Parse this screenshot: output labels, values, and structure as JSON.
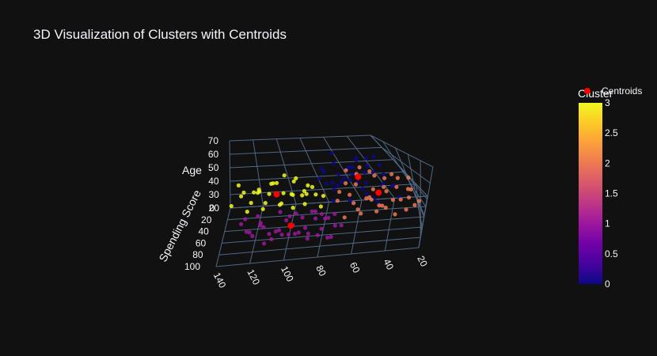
{
  "chart_data": {
    "type": "scatter",
    "title": "3D Visualization of Clusters with Centroids",
    "axes": {
      "x": {
        "title": "",
        "ticks": [
          140,
          120,
          100,
          80,
          60,
          40,
          20
        ]
      },
      "y": {
        "title": "Spending Score",
        "ticks": [
          0,
          20,
          40,
          60,
          80,
          100
        ]
      },
      "z": {
        "title": "Age",
        "ticks": [
          20,
          30,
          40,
          50,
          60,
          70
        ]
      }
    },
    "colorbar": {
      "title": "Cluster",
      "ticks": [
        "3",
        "2.5",
        "2",
        "1.5",
        "1",
        "0.5",
        "0"
      ],
      "range": [
        0,
        3
      ],
      "colors": [
        "#0d0887",
        "#46039f",
        "#7201a8",
        "#9c179e",
        "#bd3786",
        "#d8576b",
        "#ed7953",
        "#fb9f3a",
        "#fdca26",
        "#f0f921"
      ]
    },
    "legend": [
      {
        "name": "Centroids",
        "color": "#ff0000"
      }
    ],
    "series": [
      {
        "cluster": 0,
        "color": "#0d0887",
        "points": [
          [
            78,
            28,
            49
          ],
          [
            74,
            32,
            55
          ],
          [
            70,
            38,
            44
          ],
          [
            66,
            34,
            61
          ],
          [
            62,
            40,
            52
          ],
          [
            58,
            30,
            47
          ],
          [
            54,
            36,
            58
          ],
          [
            50,
            42,
            40
          ],
          [
            46,
            28,
            51
          ],
          [
            42,
            34,
            63
          ],
          [
            38,
            40,
            45
          ],
          [
            34,
            30,
            56
          ],
          [
            30,
            36,
            42
          ],
          [
            72,
            44,
            38
          ],
          [
            68,
            48,
            50
          ],
          [
            64,
            26,
            66
          ],
          [
            60,
            46,
            36
          ],
          [
            56,
            22,
            53
          ],
          [
            52,
            48,
            46
          ],
          [
            48,
            24,
            59
          ],
          [
            44,
            44,
            34
          ],
          [
            40,
            20,
            48
          ],
          [
            36,
            46,
            54
          ],
          [
            32,
            26,
            39
          ],
          [
            76,
            40,
            60
          ],
          [
            70,
            22,
            43
          ],
          [
            66,
            46,
            57
          ],
          [
            62,
            32,
            33
          ],
          [
            58,
            48,
            62
          ],
          [
            54,
            20,
            41
          ],
          [
            50,
            38,
            65
          ],
          [
            46,
            44,
            37
          ],
          [
            42,
            24,
            54
          ],
          [
            38,
            48,
            48
          ],
          [
            34,
            22,
            60
          ],
          [
            30,
            42,
            36
          ],
          [
            74,
            26,
            44
          ],
          [
            64,
            36,
            48
          ],
          [
            56,
            42,
            55
          ],
          [
            48,
            30,
            44
          ]
        ]
      },
      {
        "cluster": 1,
        "color": "#9c179e",
        "points": [
          [
            130,
            58,
            32
          ],
          [
            124,
            62,
            27
          ],
          [
            118,
            66,
            35
          ],
          [
            112,
            60,
            24
          ],
          [
            106,
            70,
            30
          ],
          [
            100,
            64,
            37
          ],
          [
            96,
            74,
            28
          ],
          [
            92,
            58,
            33
          ],
          [
            88,
            68,
            25
          ],
          [
            84,
            62,
            38
          ],
          [
            80,
            72,
            29
          ],
          [
            76,
            66,
            34
          ],
          [
            72,
            60,
            26
          ],
          [
            126,
            70,
            31
          ],
          [
            120,
            56,
            36
          ],
          [
            114,
            74,
            23
          ],
          [
            108,
            64,
            27
          ],
          [
            102,
            58,
            32
          ],
          [
            98,
            76,
            35
          ],
          [
            94,
            62,
            24
          ],
          [
            90,
            70,
            30
          ],
          [
            86,
            56,
            36
          ],
          [
            82,
            78,
            27
          ],
          [
            78,
            64,
            33
          ],
          [
            74,
            70,
            22
          ],
          [
            110,
            80,
            28
          ],
          [
            104,
            66,
            25
          ],
          [
            128,
            64,
            38
          ],
          [
            122,
            76,
            30
          ],
          [
            116,
            52,
            26
          ],
          [
            100,
            82,
            31
          ],
          [
            96,
            52,
            34
          ],
          [
            88,
            80,
            26
          ],
          [
            84,
            54,
            30
          ],
          [
            80,
            60,
            35
          ],
          [
            76,
            76,
            24
          ],
          [
            72,
            54,
            32
          ],
          [
            68,
            66,
            28
          ],
          [
            118,
            58,
            30
          ],
          [
            106,
            52,
            36
          ]
        ]
      },
      {
        "cluster": 2,
        "color": "#ed7953",
        "points": [
          [
            68,
            56,
            48
          ],
          [
            64,
            60,
            55
          ],
          [
            60,
            64,
            42
          ],
          [
            56,
            58,
            60
          ],
          [
            52,
            66,
            45
          ],
          [
            48,
            70,
            52
          ],
          [
            44,
            62,
            38
          ],
          [
            40,
            68,
            58
          ],
          [
            36,
            72,
            44
          ],
          [
            32,
            64,
            50
          ],
          [
            28,
            70,
            36
          ],
          [
            24,
            66,
            56
          ],
          [
            20,
            74,
            42
          ],
          [
            66,
            68,
            34
          ],
          [
            62,
            54,
            62
          ],
          [
            58,
            72,
            40
          ],
          [
            54,
            60,
            65
          ],
          [
            50,
            76,
            47
          ],
          [
            46,
            56,
            32
          ],
          [
            42,
            74,
            54
          ],
          [
            38,
            58,
            46
          ],
          [
            34,
            78,
            60
          ],
          [
            30,
            60,
            40
          ],
          [
            26,
            80,
            52
          ],
          [
            22,
            62,
            36
          ],
          [
            60,
            74,
            58
          ],
          [
            52,
            80,
            50
          ],
          [
            44,
            82,
            44
          ],
          [
            36,
            84,
            38
          ],
          [
            28,
            84,
            48
          ],
          [
            56,
            52,
            30
          ],
          [
            48,
            62,
            62
          ],
          [
            40,
            56,
            34
          ],
          [
            32,
            54,
            56
          ],
          [
            24,
            58,
            46
          ],
          [
            70,
            62,
            44
          ],
          [
            64,
            76,
            52
          ],
          [
            46,
            66,
            60
          ]
        ]
      },
      {
        "cluster": 3,
        "color": "#f0f921",
        "points": [
          [
            138,
            20,
            30
          ],
          [
            132,
            16,
            35
          ],
          [
            126,
            12,
            28
          ],
          [
            120,
            18,
            40
          ],
          [
            114,
            10,
            33
          ],
          [
            108,
            14,
            26
          ],
          [
            104,
            20,
            37
          ],
          [
            100,
            8,
            31
          ],
          [
            96,
            12,
            42
          ],
          [
            92,
            18,
            27
          ],
          [
            88,
            6,
            36
          ],
          [
            84,
            14,
            32
          ],
          [
            80,
            10,
            29
          ],
          [
            130,
            24,
            41
          ],
          [
            124,
            8,
            34
          ],
          [
            118,
            22,
            27
          ],
          [
            112,
            4,
            38
          ],
          [
            106,
            24,
            31
          ],
          [
            102,
            2,
            43
          ],
          [
            98,
            22,
            36
          ],
          [
            94,
            4,
            28
          ],
          [
            90,
            24,
            39
          ],
          [
            86,
            2,
            33
          ],
          [
            82,
            22,
            26
          ],
          [
            134,
            6,
            39
          ],
          [
            110,
            18,
            44
          ],
          [
            116,
            26,
            33
          ],
          [
            128,
            20,
            25
          ],
          [
            122,
            2,
            31
          ],
          [
            100,
            16,
            24
          ],
          [
            94,
            14,
            45
          ],
          [
            90,
            12,
            32
          ],
          [
            108,
            8,
            40
          ],
          [
            120,
            12,
            36
          ]
        ]
      },
      {
        "cluster": "centroids",
        "color": "#ff0000",
        "points": [
          [
            52,
            34,
            50
          ],
          [
            99,
            66,
            31
          ],
          [
            44,
            66,
            48
          ],
          [
            109,
            14,
            34
          ]
        ]
      }
    ]
  }
}
